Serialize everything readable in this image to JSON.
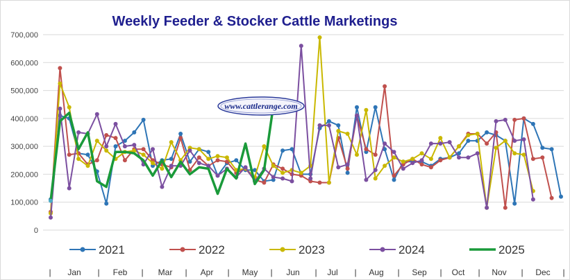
{
  "chart_data": {
    "type": "line",
    "title": "Weekly Feeder & Stocker Cattle Marketings",
    "watermark": "www.cattlerange.com",
    "ylim": [
      0,
      700000
    ],
    "y_ticks": [
      "0",
      "100,000",
      "200,000",
      "300,000",
      "400,000",
      "500,000",
      "600,000",
      "700,000"
    ],
    "x_ticks": [
      "Jan",
      "Feb",
      "Mar",
      "Apr",
      "May",
      "Jun",
      "Jul",
      "Aug",
      "Sep",
      "Oct",
      "Nov",
      "Dec"
    ],
    "x_separator": "|",
    "grid": true,
    "legend": "bottom",
    "series": [
      {
        "name": "2021",
        "color": "#2e75b6",
        "values": [
          110000,
          410000,
          400000,
          275000,
          270000,
          210000,
          95000,
          300000,
          320000,
          350000,
          395000,
          230000,
          250000,
          255000,
          345000,
          245000,
          290000,
          280000,
          195000,
          240000,
          250000,
          215000,
          215000,
          175000,
          180000,
          285000,
          290000,
          200000,
          200000,
          365000,
          390000,
          375000,
          205000,
          440000,
          280000,
          440000,
          290000,
          180000,
          245000,
          245000,
          245000,
          230000,
          255000,
          260000,
          275000,
          320000,
          320000,
          350000,
          340000,
          320000,
          95000,
          400000,
          380000,
          295000,
          290000,
          120000
        ]
      },
      {
        "name": "2022",
        "color": "#c0504d",
        "values": [
          65000,
          580000,
          270000,
          275000,
          235000,
          250000,
          340000,
          330000,
          250000,
          290000,
          290000,
          250000,
          235000,
          225000,
          330000,
          215000,
          260000,
          230000,
          250000,
          245000,
          205000,
          220000,
          180000,
          170000,
          235000,
          220000,
          200000,
          195000,
          175000,
          170000,
          170000,
          330000,
          220000,
          410000,
          290000,
          270000,
          515000,
          195000,
          235000,
          255000,
          235000,
          225000,
          250000,
          260000,
          300000,
          345000,
          345000,
          310000,
          350000,
          80000,
          395000,
          400000,
          255000,
          260000,
          115000,
          0
        ]
      },
      {
        "name": "2023",
        "color": "#c9b800",
        "values": [
          60000,
          525000,
          440000,
          255000,
          230000,
          320000,
          285000,
          255000,
          280000,
          285000,
          270000,
          240000,
          220000,
          315000,
          250000,
          295000,
          290000,
          255000,
          265000,
          260000,
          215000,
          220000,
          190000,
          300000,
          230000,
          205000,
          215000,
          205000,
          230000,
          690000,
          170000,
          355000,
          345000,
          270000,
          430000,
          185000,
          230000,
          260000,
          245000,
          255000,
          275000,
          255000,
          330000,
          260000,
          300000,
          340000,
          345000,
          80000,
          295000,
          320000,
          275000,
          270000,
          140000,
          0,
          0,
          0
        ]
      },
      {
        "name": "2024",
        "color": "#7b4fa0",
        "values": [
          45000,
          435000,
          150000,
          350000,
          345000,
          415000,
          300000,
          380000,
          300000,
          305000,
          235000,
          290000,
          155000,
          230000,
          230000,
          285000,
          240000,
          230000,
          195000,
          220000,
          190000,
          225000,
          175000,
          220000,
          190000,
          185000,
          175000,
          660000,
          185000,
          375000,
          375000,
          225000,
          235000,
          410000,
          180000,
          215000,
          310000,
          280000,
          220000,
          240000,
          250000,
          310000,
          310000,
          315000,
          260000,
          260000,
          275000,
          80000,
          390000,
          395000,
          320000,
          325000,
          110000,
          0,
          0,
          0
        ]
      },
      {
        "name": "2025",
        "color": "#1a9a3a",
        "values": [
          105000,
          390000,
          420000,
          290000,
          350000,
          175000,
          155000,
          280000,
          280000,
          275000,
          250000,
          195000,
          250000,
          190000,
          245000,
          200000,
          225000,
          220000,
          130000,
          220000,
          185000,
          310000,
          165000,
          215000,
          445000,
          0,
          0,
          0,
          0,
          0,
          0,
          0,
          0,
          0,
          0,
          0,
          0,
          0,
          0,
          0,
          0,
          0,
          0,
          0,
          0,
          0,
          0,
          0,
          0,
          0,
          0,
          0,
          0,
          0,
          0,
          0
        ]
      }
    ]
  }
}
